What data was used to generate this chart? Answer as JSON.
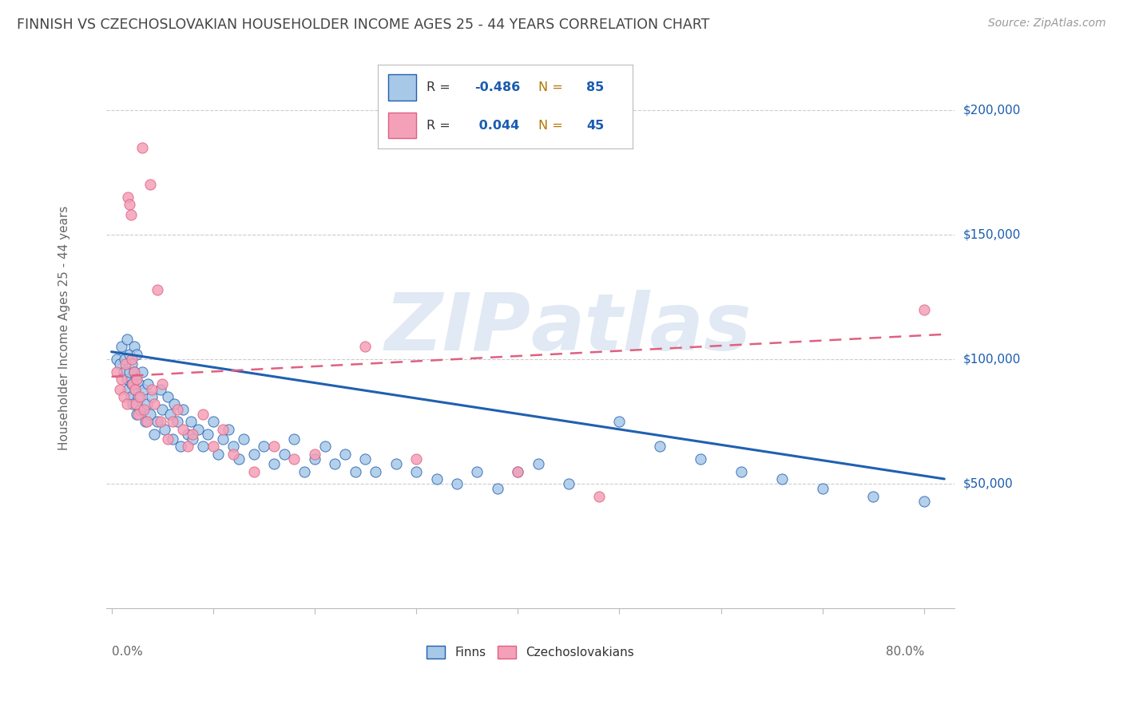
{
  "title": "FINNISH VS CZECHOSLOVAKIAN HOUSEHOLDER INCOME AGES 25 - 44 YEARS CORRELATION CHART",
  "source": "Source: ZipAtlas.com",
  "ylabel": "Householder Income Ages 25 - 44 years",
  "y_tick_labels": [
    "$50,000",
    "$100,000",
    "$150,000",
    "$200,000"
  ],
  "y_tick_values": [
    50000,
    100000,
    150000,
    200000
  ],
  "ylim": [
    0,
    225000
  ],
  "xlim": [
    -0.005,
    0.83
  ],
  "watermark": "ZIPatlas",
  "color_finns": "#a8c8e8",
  "color_czech": "#f4a0b8",
  "color_line_finns": "#2060b0",
  "color_line_czech": "#e06080",
  "color_title": "#444444",
  "color_R_val": "#1a5cb0",
  "color_N_label": "#b07800",
  "color_N_val": "#1a5cb0",
  "background": "#ffffff",
  "finns_x": [
    0.005,
    0.008,
    0.01,
    0.012,
    0.013,
    0.015,
    0.015,
    0.016,
    0.018,
    0.018,
    0.019,
    0.02,
    0.02,
    0.021,
    0.022,
    0.022,
    0.023,
    0.024,
    0.025,
    0.025,
    0.026,
    0.027,
    0.028,
    0.03,
    0.032,
    0.033,
    0.035,
    0.036,
    0.038,
    0.04,
    0.042,
    0.045,
    0.048,
    0.05,
    0.052,
    0.055,
    0.058,
    0.06,
    0.062,
    0.065,
    0.068,
    0.07,
    0.075,
    0.078,
    0.08,
    0.085,
    0.09,
    0.095,
    0.1,
    0.105,
    0.11,
    0.115,
    0.12,
    0.125,
    0.13,
    0.14,
    0.15,
    0.16,
    0.17,
    0.18,
    0.19,
    0.2,
    0.21,
    0.22,
    0.23,
    0.24,
    0.25,
    0.26,
    0.28,
    0.3,
    0.32,
    0.34,
    0.36,
    0.38,
    0.4,
    0.42,
    0.45,
    0.5,
    0.54,
    0.58,
    0.62,
    0.66,
    0.7,
    0.75,
    0.8
  ],
  "finns_y": [
    100000,
    98000,
    105000,
    95000,
    100000,
    92000,
    108000,
    88000,
    102000,
    95000,
    85000,
    98000,
    90000,
    82000,
    105000,
    95000,
    88000,
    92000,
    78000,
    102000,
    85000,
    90000,
    80000,
    95000,
    88000,
    75000,
    82000,
    90000,
    78000,
    85000,
    70000,
    75000,
    88000,
    80000,
    72000,
    85000,
    78000,
    68000,
    82000,
    75000,
    65000,
    80000,
    70000,
    75000,
    68000,
    72000,
    65000,
    70000,
    75000,
    62000,
    68000,
    72000,
    65000,
    60000,
    68000,
    62000,
    65000,
    58000,
    62000,
    68000,
    55000,
    60000,
    65000,
    58000,
    62000,
    55000,
    60000,
    55000,
    58000,
    55000,
    52000,
    50000,
    55000,
    48000,
    55000,
    58000,
    50000,
    75000,
    65000,
    60000,
    55000,
    52000,
    48000,
    45000,
    43000
  ],
  "czech_x": [
    0.005,
    0.008,
    0.01,
    0.012,
    0.014,
    0.015,
    0.016,
    0.018,
    0.019,
    0.02,
    0.021,
    0.022,
    0.023,
    0.024,
    0.025,
    0.026,
    0.028,
    0.03,
    0.032,
    0.035,
    0.038,
    0.04,
    0.042,
    0.045,
    0.048,
    0.05,
    0.055,
    0.06,
    0.065,
    0.07,
    0.075,
    0.08,
    0.09,
    0.1,
    0.11,
    0.12,
    0.14,
    0.16,
    0.18,
    0.2,
    0.25,
    0.3,
    0.4,
    0.48,
    0.8
  ],
  "czech_y": [
    95000,
    88000,
    92000,
    85000,
    98000,
    82000,
    165000,
    162000,
    158000,
    100000,
    90000,
    95000,
    88000,
    82000,
    92000,
    78000,
    85000,
    185000,
    80000,
    75000,
    170000,
    88000,
    82000,
    128000,
    75000,
    90000,
    68000,
    75000,
    80000,
    72000,
    65000,
    70000,
    78000,
    65000,
    72000,
    62000,
    55000,
    65000,
    60000,
    62000,
    105000,
    60000,
    55000,
    45000,
    120000
  ],
  "finns_trend_x": [
    0.0,
    0.82
  ],
  "finns_trend_y": [
    103000,
    52000
  ],
  "czech_trend_x": [
    0.0,
    0.82
  ],
  "czech_trend_y": [
    93000,
    110000
  ]
}
